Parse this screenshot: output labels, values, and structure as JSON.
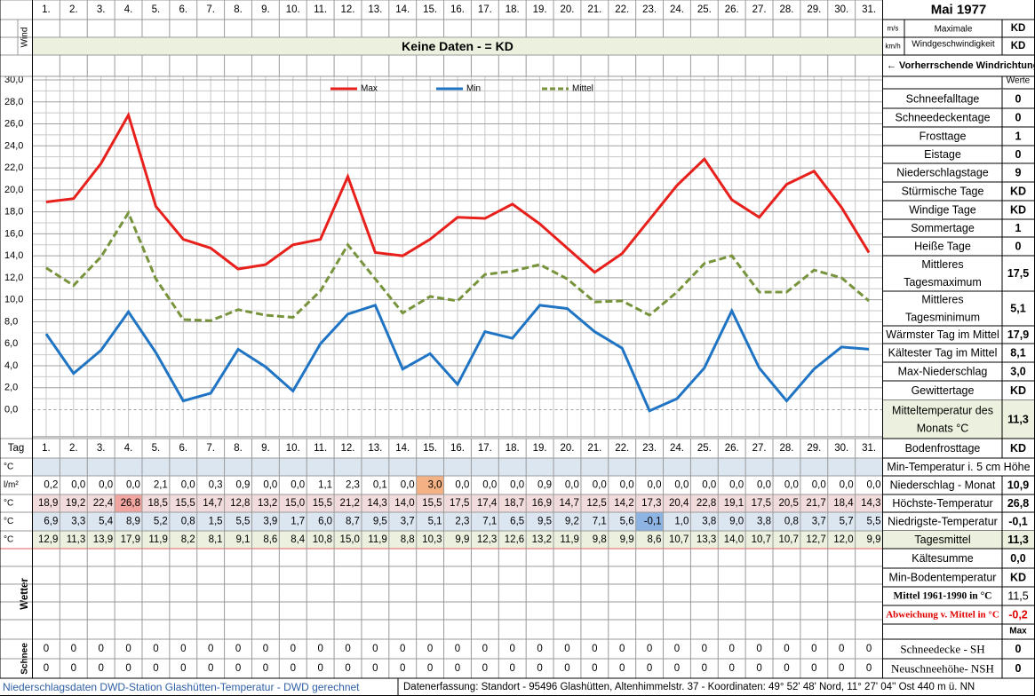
{
  "header": {
    "title": "Mai 1977"
  },
  "wind": {
    "label": "Wind",
    "units": [
      "m/s",
      "km/h"
    ],
    "description": [
      "Maximale",
      "Windgeschwindigkeit"
    ],
    "values": [
      "KD",
      "KD"
    ],
    "no_data": "Keine Daten -  = KD",
    "direction": "← Vorherrschende Windrichtung"
  },
  "chart_data": {
    "type": "line",
    "categories": [
      "1.",
      "2.",
      "3.",
      "4.",
      "5.",
      "6.",
      "7.",
      "8.",
      "9.",
      "10.",
      "11.",
      "12.",
      "13.",
      "14.",
      "15.",
      "16.",
      "17.",
      "18.",
      "19.",
      "20.",
      "21.",
      "22.",
      "23.",
      "24.",
      "25.",
      "26.",
      "27.",
      "28.",
      "29.",
      "30.",
      "31."
    ],
    "series": [
      {
        "name": "Max",
        "color": "#e8201c",
        "dashed": false,
        "values": [
          18.9,
          19.2,
          22.4,
          26.8,
          18.5,
          15.5,
          14.7,
          12.8,
          13.2,
          15.0,
          15.5,
          21.2,
          14.3,
          14.0,
          15.5,
          17.5,
          17.4,
          18.7,
          16.9,
          14.7,
          12.5,
          14.2,
          17.3,
          20.4,
          22.8,
          19.1,
          17.5,
          20.5,
          21.7,
          18.4,
          14.3
        ]
      },
      {
        "name": "Min",
        "color": "#1f74c4",
        "dashed": false,
        "values": [
          6.9,
          3.3,
          5.4,
          8.9,
          5.2,
          0.8,
          1.5,
          5.5,
          3.9,
          1.7,
          6.0,
          8.7,
          9.5,
          3.7,
          5.1,
          2.3,
          7.1,
          6.5,
          9.5,
          9.2,
          7.1,
          5.6,
          -0.1,
          1.0,
          3.8,
          9.0,
          3.8,
          0.8,
          3.7,
          5.7,
          5.5
        ]
      },
      {
        "name": "Mittel",
        "color": "#77933c",
        "dashed": true,
        "values": [
          12.9,
          11.3,
          13.9,
          17.9,
          11.9,
          8.2,
          8.1,
          9.1,
          8.6,
          8.4,
          10.8,
          15.0,
          11.9,
          8.8,
          10.3,
          9.9,
          12.3,
          12.6,
          13.2,
          11.9,
          9.8,
          9.9,
          8.6,
          10.7,
          13.3,
          14.0,
          10.7,
          10.7,
          12.7,
          12.0,
          9.9
        ]
      }
    ],
    "ylim": [
      -2.3,
      30
    ],
    "yticks": [
      {
        "value": 30,
        "label": "30,0"
      },
      {
        "value": 28,
        "label": "28,0"
      },
      {
        "value": 26,
        "label": "26,0"
      },
      {
        "value": 24,
        "label": "24,0"
      },
      {
        "value": 22,
        "label": "22,0"
      },
      {
        "value": 20,
        "label": "20,0"
      },
      {
        "value": 18,
        "label": "18,0"
      },
      {
        "value": 16,
        "label": "16,0"
      },
      {
        "value": 14,
        "label": "14,0"
      },
      {
        "value": 12,
        "label": "12,0"
      },
      {
        "value": 10,
        "label": "10,0"
      },
      {
        "value": 8,
        "label": "8,0"
      },
      {
        "value": 6,
        "label": "6,0"
      },
      {
        "value": 4,
        "label": "4,0"
      },
      {
        "value": 2,
        "label": "2,0"
      },
      {
        "value": 0,
        "label": "0,0"
      }
    ],
    "grid": true,
    "legend": "top"
  },
  "stats": {
    "header": "Werte",
    "rows": [
      {
        "label": "Schneefalltage",
        "value": "0"
      },
      {
        "label": "Schneedeckentage",
        "value": "0"
      },
      {
        "label": "Frosttage",
        "value": "1"
      },
      {
        "label": "Eistage",
        "value": "0"
      },
      {
        "label": "Niederschlagstage",
        "value": "9"
      },
      {
        "label": "Stürmische Tage",
        "value": "KD"
      },
      {
        "label": "Windige Tage",
        "value": "KD"
      },
      {
        "label": "Sommertage",
        "value": "1"
      },
      {
        "label": "Heiße Tage",
        "value": "0"
      },
      {
        "label": [
          "Mittleres",
          "Tagesmaximum"
        ],
        "value": "17,5"
      },
      {
        "label": [
          "Mittleres",
          "Tagesminimum"
        ],
        "value": "5,1"
      },
      {
        "label": "Wärmster Tag im Mittel",
        "value": "17,9"
      },
      {
        "label": "Kältester Tag im Mittel",
        "value": "8,1"
      },
      {
        "label": "Max-Niederschlag",
        "value": "3,0"
      },
      {
        "label": "Gewittertage",
        "value": "KD"
      },
      {
        "label": [
          "Mitteltemperatur des",
          "Monats °C"
        ],
        "value": "11,3"
      }
    ]
  },
  "table": {
    "day_label": "Tag",
    "rows": [
      {
        "unit": "°C",
        "fill": "#dce6f1"
      },
      {
        "unit": "l/m²",
        "fill": "#ffffff",
        "highlight": {
          "index": 14,
          "color": "#f4b183"
        },
        "values": [
          "0,2",
          "0,0",
          "0,0",
          "0,0",
          "2,1",
          "0,0",
          "0,3",
          "0,9",
          "0,0",
          "0,0",
          "1,1",
          "2,3",
          "0,1",
          "0,0",
          "3,0",
          "0,0",
          "0,0",
          "0,0",
          "0,9",
          "0,0",
          "0,0",
          "0,0",
          "0,0",
          "0,0",
          "0,0",
          "0,0",
          "0,0",
          "0,0",
          "0,0",
          "0,0",
          "0,0"
        ]
      },
      {
        "unit": "°C",
        "fill": "#f2dcdb",
        "highlight": {
          "index": 3,
          "color": "#f2a5a0"
        },
        "values": [
          "18,9",
          "19,2",
          "22,4",
          "26,8",
          "18,5",
          "15,5",
          "14,7",
          "12,8",
          "13,2",
          "15,0",
          "15,5",
          "21,2",
          "14,3",
          "14,0",
          "15,5",
          "17,5",
          "17,4",
          "18,7",
          "16,9",
          "14,7",
          "12,5",
          "14,2",
          "17,3",
          "20,4",
          "22,8",
          "19,1",
          "17,5",
          "20,5",
          "21,7",
          "18,4",
          "14,3"
        ]
      },
      {
        "unit": "°C",
        "fill": "#dce6f1",
        "highlight": {
          "index": 22,
          "color": "#8db4e2"
        },
        "values": [
          "6,9",
          "3,3",
          "5,4",
          "8,9",
          "5,2",
          "0,8",
          "1,5",
          "5,5",
          "3,9",
          "1,7",
          "6,0",
          "8,7",
          "9,5",
          "3,7",
          "5,1",
          "2,3",
          "7,1",
          "6,5",
          "9,5",
          "9,2",
          "7,1",
          "5,6",
          "-0,1",
          "1,0",
          "3,8",
          "9,0",
          "3,8",
          "0,8",
          "3,7",
          "5,7",
          "5,5"
        ]
      },
      {
        "unit": "°C",
        "fill": "#ebf1de",
        "values": [
          "12,9",
          "11,3",
          "13,9",
          "17,9",
          "11,9",
          "8,2",
          "8,1",
          "9,1",
          "8,6",
          "8,4",
          "10,8",
          "15,0",
          "11,9",
          "8,8",
          "10,3",
          "9,9",
          "12,3",
          "12,6",
          "13,2",
          "11,9",
          "9,8",
          "9,9",
          "8,6",
          "10,7",
          "13,3",
          "14,0",
          "10,7",
          "10,7",
          "12,7",
          "12,0",
          "9,9"
        ]
      }
    ]
  },
  "summary": {
    "rows": [
      {
        "label": "Bodenfrosttage",
        "value": "KD"
      },
      {
        "label": "Min-Temperatur i. 5 cm Höhe"
      },
      {
        "label": "Niederschlag - Monat",
        "value": "10,9"
      },
      {
        "label": "Höchste-Temperatur",
        "value": "26,8"
      },
      {
        "label": "Niedrigste-Temperatur",
        "value": "-0,1"
      },
      {
        "label": "Tagesmittel",
        "value": "11,3"
      },
      {
        "label": "Kältesumme",
        "value": "0,0"
      },
      {
        "label": "Min-Bodentemperatur",
        "value": "KD"
      },
      {
        "label": "Mittel 1961-1990 in °C",
        "value": "11,5"
      },
      {
        "label": "Abweichung v. Mittel in °C",
        "value": "-0,2"
      }
    ]
  },
  "wetter": {
    "label": "Wetter"
  },
  "schnee": {
    "label": "Schnee",
    "header": "Max",
    "rows": [
      {
        "label": "Schneedecke -  SH",
        "value": "0",
        "values": [
          0,
          0,
          0,
          0,
          0,
          0,
          0,
          0,
          0,
          0,
          0,
          0,
          0,
          0,
          0,
          0,
          0,
          0,
          0,
          0,
          0,
          0,
          0,
          0,
          0,
          0,
          0,
          0,
          0,
          0,
          0
        ]
      },
      {
        "label": "Neuschneehöhe- NSH",
        "value": "0",
        "values": [
          0,
          0,
          0,
          0,
          0,
          0,
          0,
          0,
          0,
          0,
          0,
          0,
          0,
          0,
          0,
          0,
          0,
          0,
          0,
          0,
          0,
          0,
          0,
          0,
          0,
          0,
          0,
          0,
          0,
          0,
          0
        ]
      }
    ]
  },
  "footer": {
    "left": "Niederschlagsdaten DWD-Station Glashütten-Temperatur -  DWD gerechnet",
    "right": "Datenerfassung: Standort -  95496  Glashütten, Altenhimmelstr. 37 - Koordinaten:  49° 52' 48' Nord,   11° 27' 04'' Ost   440 m ü. NN"
  }
}
